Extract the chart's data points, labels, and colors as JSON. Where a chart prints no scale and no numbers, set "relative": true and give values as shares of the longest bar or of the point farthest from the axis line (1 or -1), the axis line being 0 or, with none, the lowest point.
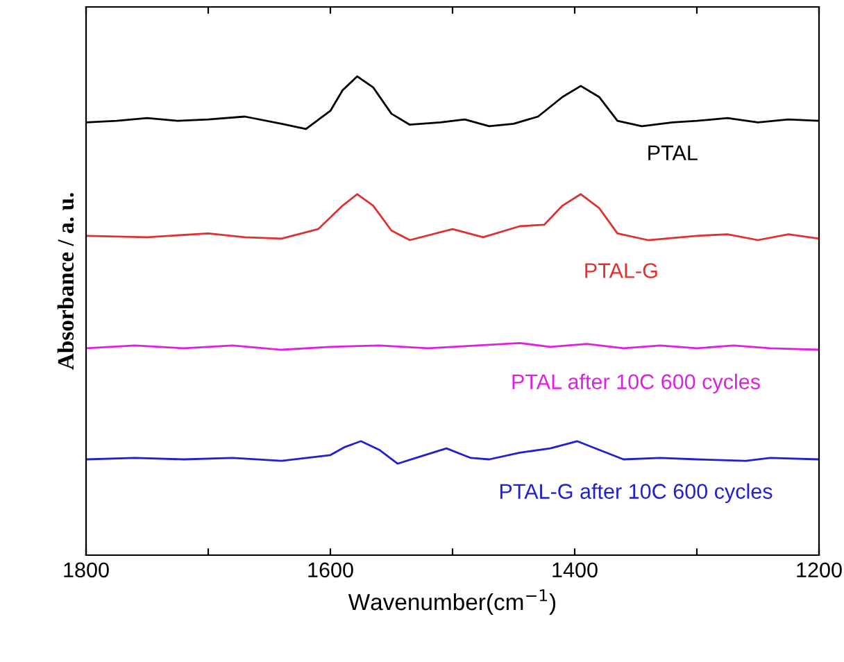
{
  "chart_data": {
    "type": "line",
    "relative": true,
    "xlabel": "Wavenumber(cm$^{−1}$)",
    "ylabel": "Absorbance / a. u.",
    "xlim": [
      1800,
      1200
    ],
    "xticks": [
      1800,
      {
        "value": 1700,
        "label": null
      },
      1600,
      {
        "value": 1500,
        "label": null
      },
      1400,
      {
        "value": 1300,
        "label": null
      },
      1200
    ],
    "grid": false,
    "legend": false,
    "tick_labels": "x",
    "line_style": "solid",
    "marker": "none",
    "series": [
      {
        "name": "PTAL",
        "color": "#000000",
        "x": [
          1800,
          1775,
          1750,
          1725,
          1700,
          1670,
          1640,
          1620,
          1600,
          1590,
          1578,
          1565,
          1550,
          1535,
          1510,
          1490,
          1470,
          1450,
          1430,
          1410,
          1395,
          1380,
          1365,
          1345,
          1320,
          1300,
          1275,
          1250,
          1225,
          1200
        ],
        "values": [
          0.904,
          0.907,
          0.913,
          0.907,
          0.91,
          0.916,
          0.901,
          0.89,
          0.928,
          0.971,
          1.0,
          0.977,
          0.922,
          0.899,
          0.904,
          0.91,
          0.896,
          0.901,
          0.916,
          0.957,
          0.98,
          0.957,
          0.907,
          0.896,
          0.904,
          0.907,
          0.913,
          0.904,
          0.91,
          0.907
        ]
      },
      {
        "name": "PTAL-G",
        "color": "#e03030",
        "x": [
          1800,
          1750,
          1700,
          1670,
          1640,
          1610,
          1590,
          1578,
          1565,
          1550,
          1535,
          1500,
          1475,
          1445,
          1425,
          1410,
          1395,
          1380,
          1365,
          1340,
          1300,
          1275,
          1250,
          1225,
          1200
        ],
        "values": [
          0.667,
          0.664,
          0.672,
          0.664,
          0.661,
          0.681,
          0.73,
          0.754,
          0.73,
          0.678,
          0.658,
          0.681,
          0.664,
          0.687,
          0.69,
          0.73,
          0.754,
          0.725,
          0.672,
          0.658,
          0.667,
          0.67,
          0.658,
          0.67,
          0.661
        ]
      },
      {
        "name": "PTAL after 10C 600 cycles",
        "color": "#e020e0",
        "x": [
          1800,
          1760,
          1720,
          1680,
          1640,
          1600,
          1560,
          1520,
          1480,
          1445,
          1420,
          1390,
          1360,
          1330,
          1300,
          1270,
          1240,
          1200
        ],
        "values": [
          0.432,
          0.438,
          0.432,
          0.438,
          0.429,
          0.435,
          0.438,
          0.432,
          0.438,
          0.443,
          0.435,
          0.441,
          0.432,
          0.438,
          0.432,
          0.438,
          0.432,
          0.429
        ]
      },
      {
        "name": "PTAL-G after 10C 600 cycles",
        "color": "#2020d0",
        "x": [
          1800,
          1760,
          1720,
          1680,
          1640,
          1600,
          1588,
          1575,
          1560,
          1545,
          1530,
          1505,
          1485,
          1470,
          1445,
          1420,
          1398,
          1380,
          1360,
          1330,
          1300,
          1260,
          1240,
          1200
        ],
        "values": [
          0.2,
          0.203,
          0.2,
          0.203,
          0.197,
          0.209,
          0.226,
          0.238,
          0.22,
          0.191,
          0.203,
          0.223,
          0.203,
          0.2,
          0.214,
          0.223,
          0.238,
          0.22,
          0.2,
          0.203,
          0.2,
          0.197,
          0.203,
          0.2
        ]
      }
    ]
  }
}
